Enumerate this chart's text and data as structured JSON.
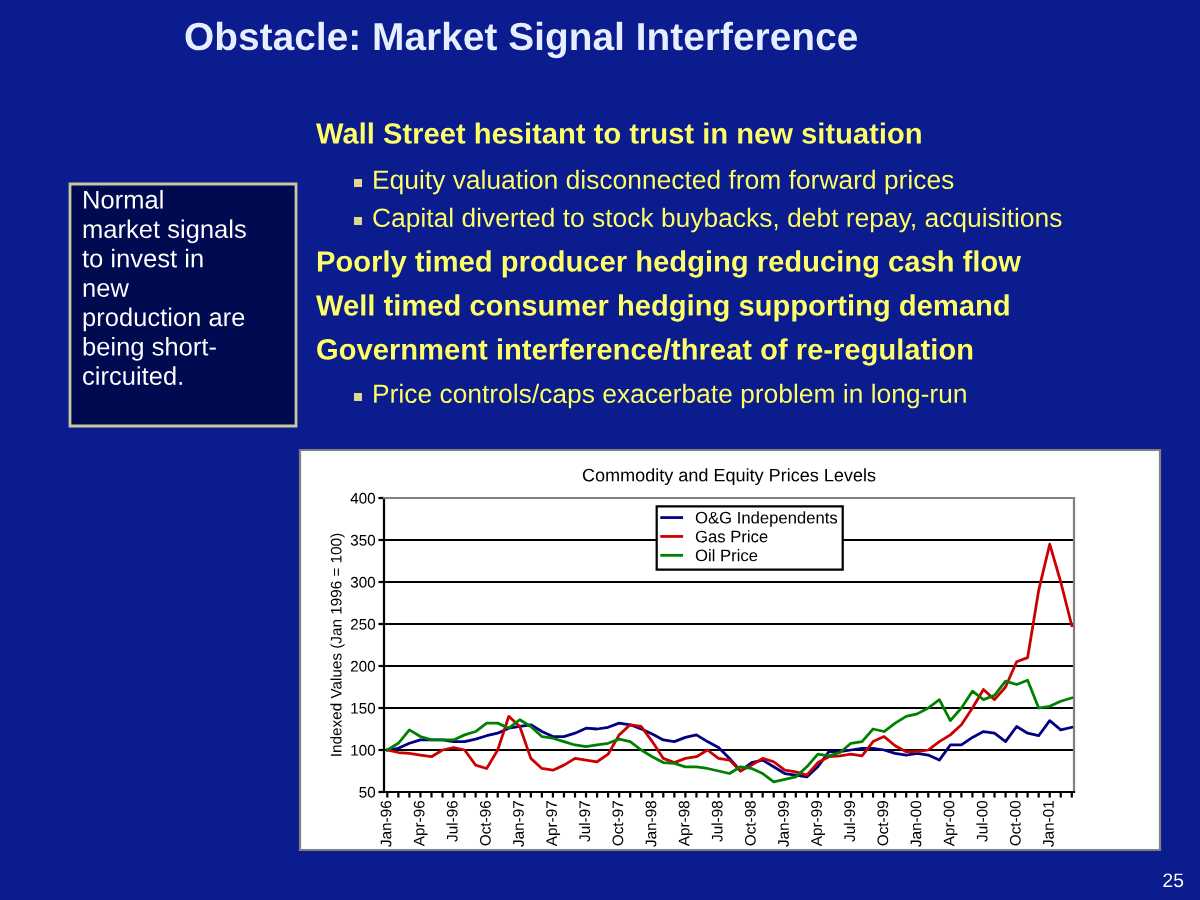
{
  "chart_data": {
    "type": "line",
    "title": "Commodity and Equity Prices Levels",
    "ylabel": "Indexed Values (Jan 1996 = 100)",
    "categories": [
      "Jan-96",
      null,
      null,
      "Apr-96",
      null,
      null,
      "Jul-96",
      null,
      null,
      "Oct-96",
      null,
      null,
      "Jan-97",
      null,
      null,
      "Apr-97",
      null,
      null,
      "Jul-97",
      null,
      null,
      "Oct-97",
      null,
      null,
      "Jan-98",
      null,
      null,
      "Apr-98",
      null,
      null,
      "Jul-98",
      null,
      null,
      "Oct-98",
      null,
      null,
      "Jan-99",
      null,
      null,
      "Apr-99",
      null,
      null,
      "Jul-99",
      null,
      null,
      "Oct-99",
      null,
      null,
      "Jan-00",
      null,
      null,
      "Apr-00",
      null,
      null,
      "Jul-00",
      null,
      null,
      "Oct-00",
      null,
      null,
      "Jan-01",
      null,
      null
    ],
    "series": [
      {
        "name": "O&G Independents",
        "color": "#000080",
        "values": [
          100,
          102,
          108,
          112,
          112,
          112,
          110,
          110,
          113,
          117,
          120,
          126,
          128,
          130,
          122,
          116,
          116,
          120,
          126,
          125,
          127,
          132,
          130,
          125,
          119,
          112,
          110,
          115,
          118,
          110,
          103,
          90,
          75,
          85,
          88,
          80,
          72,
          70,
          68,
          80,
          98,
          98,
          100,
          102,
          102,
          100,
          96,
          94,
          96,
          94,
          88,
          106,
          106,
          115,
          122,
          120,
          110,
          128,
          120,
          117,
          135,
          124,
          127
        ]
      },
      {
        "name": "Gas Price",
        "color": "#cc0000",
        "values": [
          100,
          97,
          96,
          94,
          92,
          100,
          103,
          100,
          82,
          78,
          100,
          140,
          128,
          90,
          78,
          76,
          82,
          90,
          88,
          86,
          95,
          118,
          130,
          128,
          110,
          90,
          85,
          90,
          92,
          100,
          90,
          88,
          75,
          82,
          90,
          86,
          76,
          74,
          70,
          85,
          92,
          93,
          95,
          93,
          110,
          116,
          105,
          98,
          98,
          100,
          110,
          118,
          130,
          150,
          172,
          160,
          175,
          205,
          210,
          290,
          345,
          300,
          248
        ]
      },
      {
        "name": "Oil Price",
        "color": "#008000",
        "values": [
          100,
          108,
          124,
          116,
          112,
          112,
          112,
          118,
          122,
          132,
          132,
          126,
          136,
          128,
          116,
          114,
          110,
          106,
          104,
          106,
          108,
          113,
          110,
          100,
          92,
          85,
          84,
          80,
          80,
          78,
          75,
          72,
          80,
          78,
          72,
          62,
          65,
          68,
          80,
          95,
          93,
          97,
          108,
          110,
          125,
          122,
          132,
          140,
          143,
          150,
          160,
          135,
          150,
          170,
          160,
          165,
          182,
          178,
          183,
          150,
          152,
          158,
          162
        ]
      }
    ],
    "ylim": [
      50,
      400
    ],
    "yticks": [
      50,
      100,
      150,
      200,
      250,
      300,
      350,
      400
    ],
    "grid": "y",
    "legend": "top",
    "marker": "none",
    "line_style": "solid",
    "annotations": [
      "Obstacle: Market Signal Interference",
      "Wall Street hesitant to trust in new situation",
      "Equity valuation disconnected from forward prices",
      "Capital diverted to stock buybacks, debt repay, acquisitions",
      "Poorly timed producer hedging reducing cash flow",
      "Well timed consumer hedging supporting demand",
      "Government interference/threat of re-regulation",
      "Price controls/caps exacerbate problem in long-run",
      "Normal\nmarket signals\nto invest in\nnew\nproduction are\nbeing short-\ncircuited.",
      "25"
    ]
  }
}
